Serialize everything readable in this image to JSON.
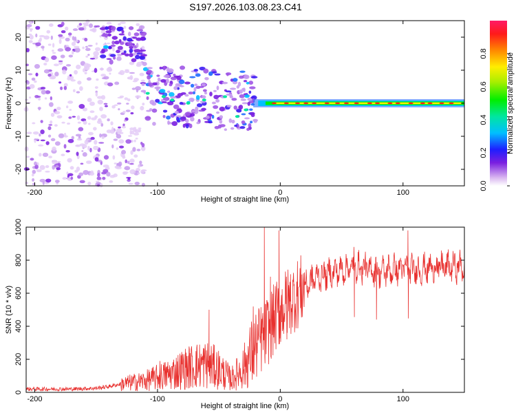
{
  "title": "S197.2026.103.08.23.C41",
  "chart_data": [
    {
      "type": "heatmap",
      "name": "spectrogram",
      "xlabel": "Height of straight line (km)",
      "ylabel": "Frequency (Hz)",
      "xlim": [
        -207,
        150
      ],
      "ylim": [
        -25,
        25
      ],
      "xticks": [
        -200,
        -100,
        0,
        100
      ],
      "yticks": [
        -20,
        -10,
        0,
        10,
        20
      ],
      "colorbar": {
        "label": "Normalized spectral amplitude",
        "range": [
          0,
          1
        ],
        "ticks": [
          0.0,
          0.2,
          0.4,
          0.6,
          0.8
        ],
        "tick_labels": [
          "0.0",
          "0.2",
          "0.4",
          "0.6",
          "0.8"
        ]
      }
    },
    {
      "type": "line",
      "name": "snr",
      "xlabel": "Height of straight line (km)",
      "ylabel": "SNR (10 * v/v)",
      "xlim": [
        -207,
        150
      ],
      "ylim": [
        0,
        1000
      ],
      "xticks": [
        -200,
        -100,
        0,
        100
      ],
      "yticks": [
        0,
        200,
        400,
        600,
        800,
        1000
      ],
      "color": "#e8302e",
      "series": [
        {
          "name": "SNR",
          "x": [
            -207,
            -190,
            -170,
            -150,
            -140,
            -130,
            -120,
            -110,
            -100,
            -90,
            -80,
            -70,
            -60,
            -50,
            -40,
            -30,
            -20,
            -10,
            0,
            10,
            20,
            30,
            40,
            50,
            60,
            70,
            80,
            90,
            100,
            110,
            120,
            130,
            140,
            150
          ],
          "values": [
            20,
            20,
            20,
            25,
            35,
            50,
            60,
            70,
            90,
            110,
            140,
            160,
            170,
            140,
            80,
            150,
            280,
            380,
            500,
            570,
            640,
            700,
            720,
            740,
            760,
            750,
            730,
            740,
            750,
            740,
            750,
            760,
            760,
            760
          ]
        }
      ],
      "spikes": [
        {
          "x": -98,
          "value": 190
        },
        {
          "x": -58,
          "value": 500
        },
        {
          "x": -22,
          "value": 520
        },
        {
          "x": -13,
          "value": 1000
        },
        {
          "x": -8,
          "value": 700
        },
        {
          "x": -1,
          "value": 980
        },
        {
          "x": 5,
          "value": 700
        },
        {
          "x": 60,
          "value": 880
        },
        {
          "x": 78,
          "value": 820
        },
        {
          "x": 104,
          "value": 980
        }
      ]
    }
  ]
}
